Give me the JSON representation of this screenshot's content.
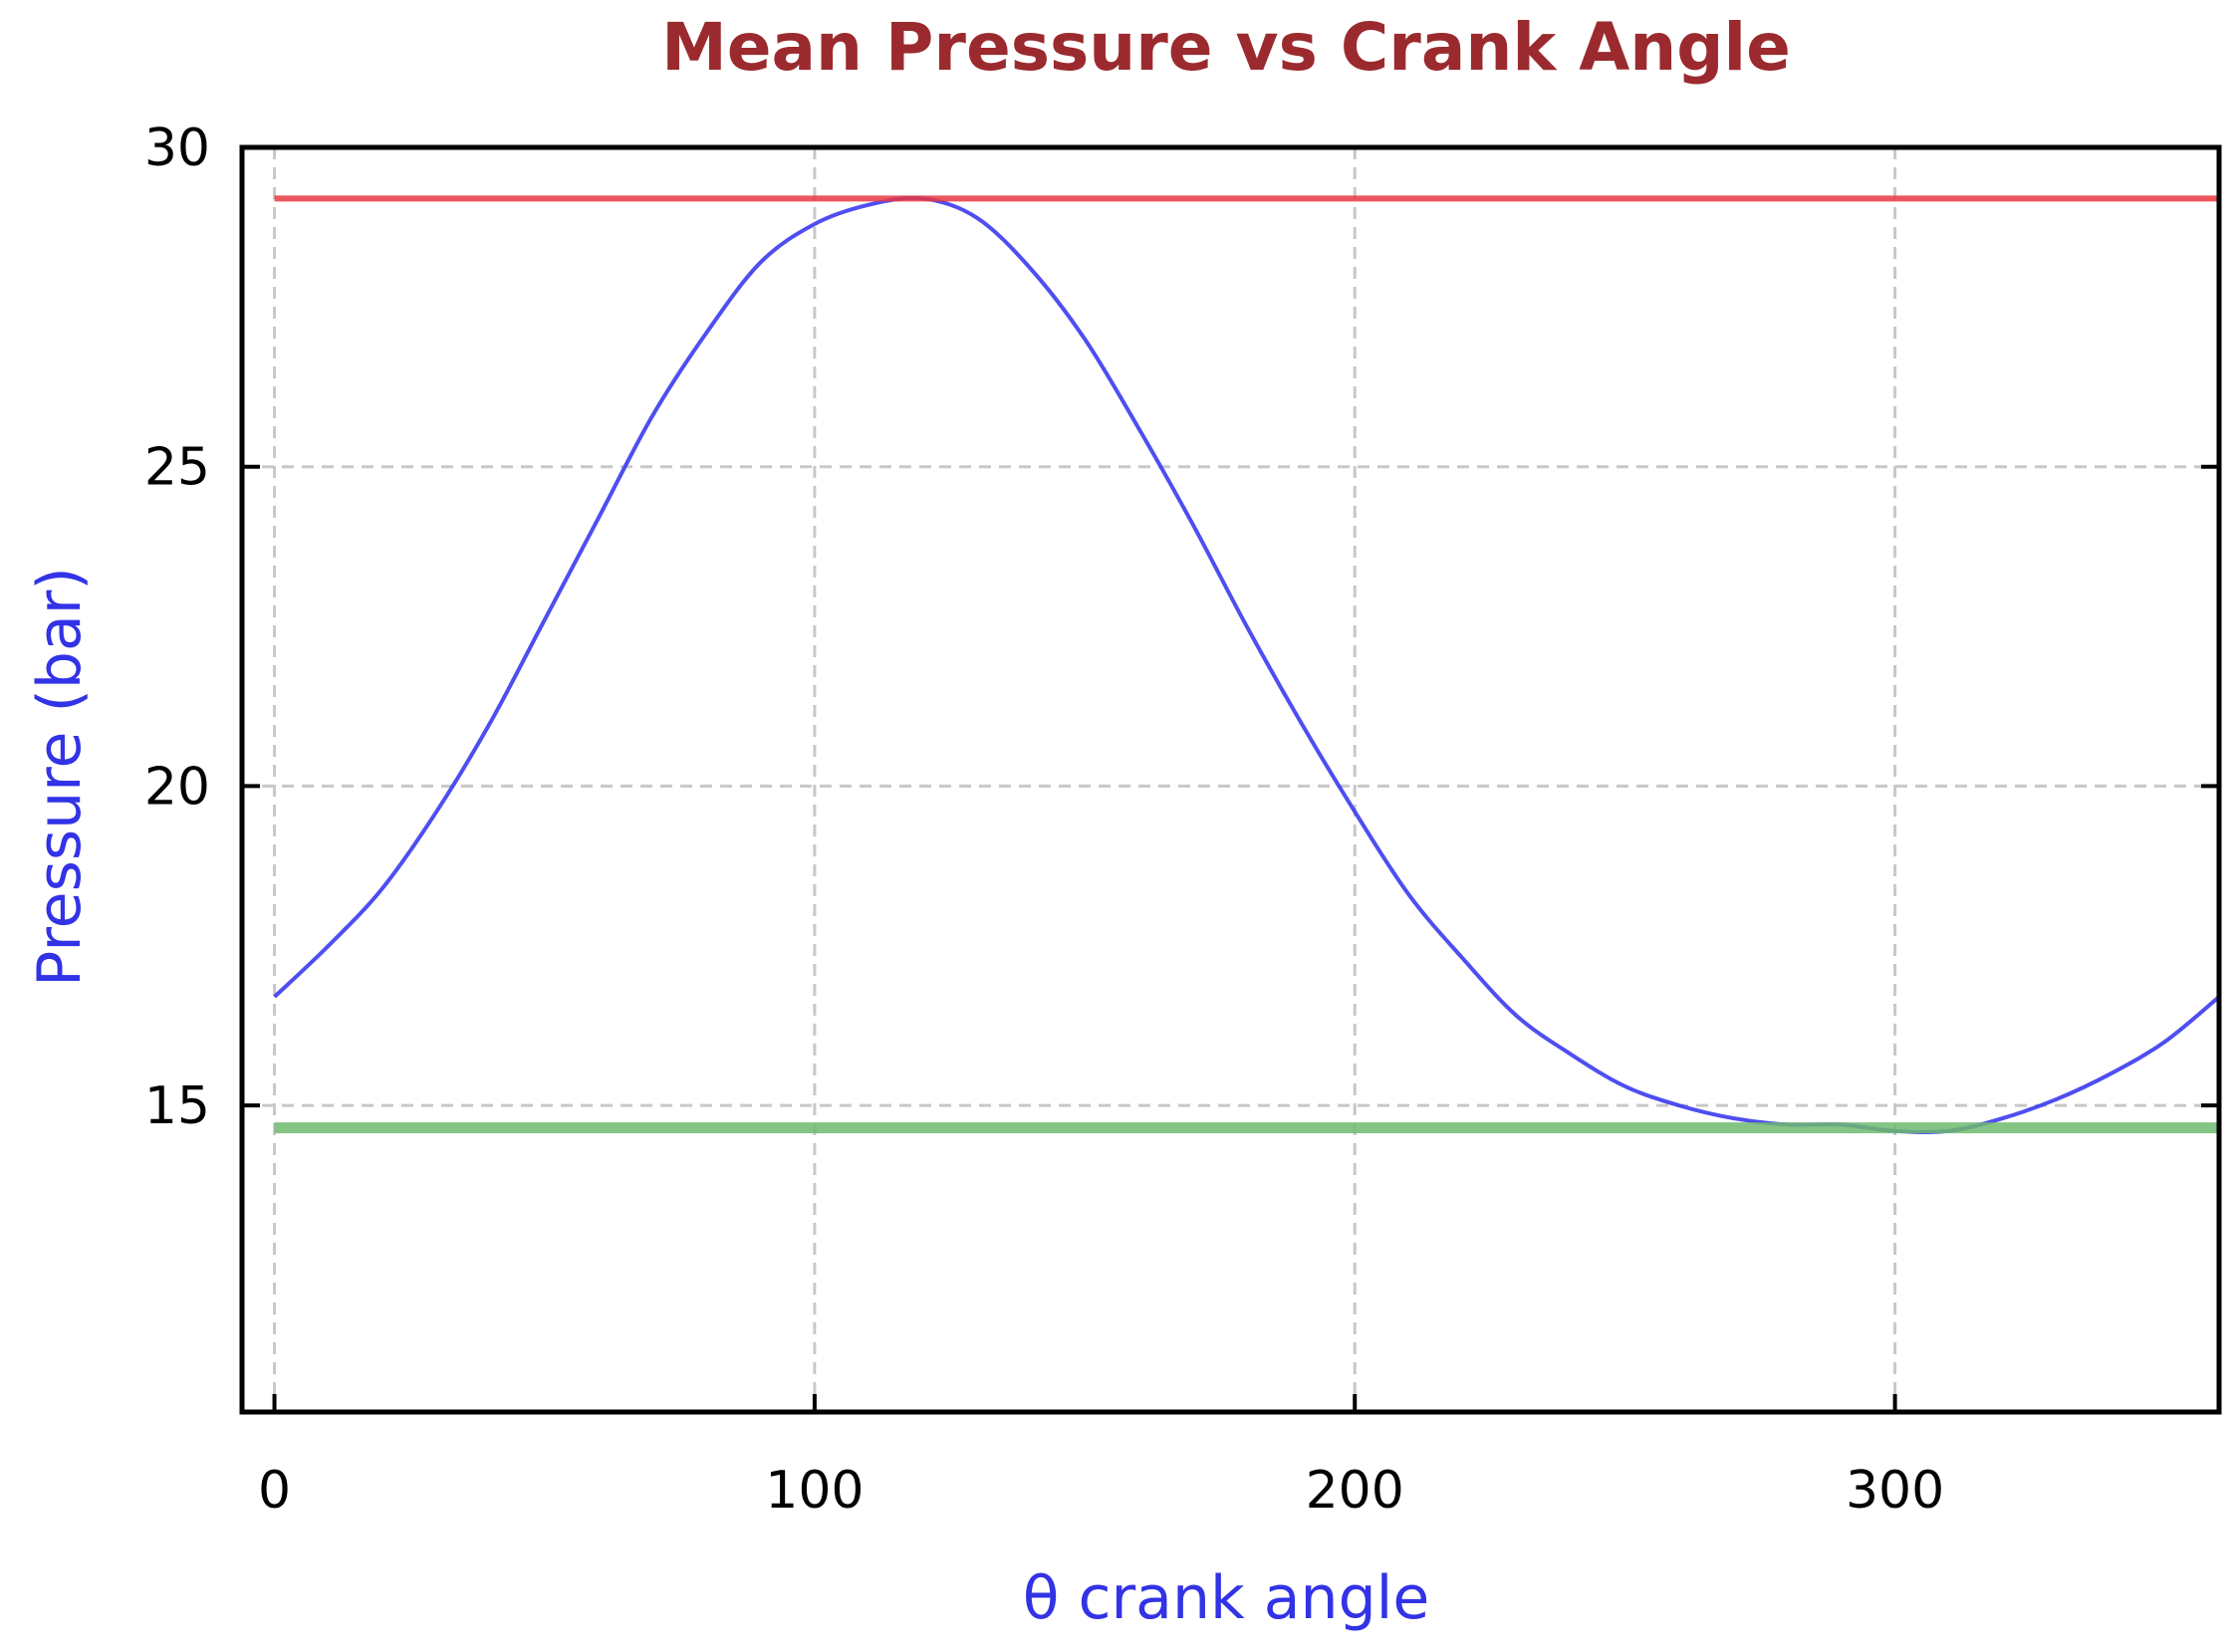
{
  "chart_data": {
    "type": "line",
    "title": "Mean Pressure vs Crank Angle",
    "xlabel": "θ crank angle",
    "ylabel": "Pressure (bar)",
    "xlim": [
      -6,
      360
    ],
    "ylim": [
      10.2,
      30
    ],
    "xticks": [
      0,
      100,
      200,
      300
    ],
    "yticks": [
      15,
      20,
      25,
      30
    ],
    "grid": true,
    "series": [
      {
        "color": "#3b3bf0",
        "x": [
          0,
          10,
          20,
          30,
          40,
          50,
          60,
          70,
          80,
          90,
          100,
          110,
          120,
          130,
          140,
          150,
          160,
          170,
          180,
          190,
          200,
          210,
          220,
          230,
          240,
          250,
          260,
          270,
          280,
          290,
          300,
          310,
          320,
          330,
          340,
          350,
          360
        ],
        "values": [
          16.7,
          17.5,
          18.4,
          19.6,
          21.0,
          22.6,
          24.2,
          25.8,
          27.1,
          28.2,
          28.8,
          29.1,
          29.2,
          28.9,
          28.1,
          27.0,
          25.6,
          24.1,
          22.5,
          21.0,
          19.6,
          18.3,
          17.3,
          16.4,
          15.8,
          15.3,
          15.0,
          14.8,
          14.7,
          14.7,
          14.6,
          14.6,
          14.8,
          15.1,
          15.5,
          16.0,
          16.7
        ]
      },
      {
        "color": "#e8383f",
        "x": [
          0,
          360
        ],
        "values": [
          29.2,
          29.2
        ]
      },
      {
        "color": "#6fba6f",
        "x": [
          0,
          360
        ],
        "values": [
          14.65,
          14.65
        ]
      }
    ]
  },
  "colors": {
    "title": "#9b2a2e",
    "axis_labels": "#3232e6",
    "background": "#ffffff"
  }
}
